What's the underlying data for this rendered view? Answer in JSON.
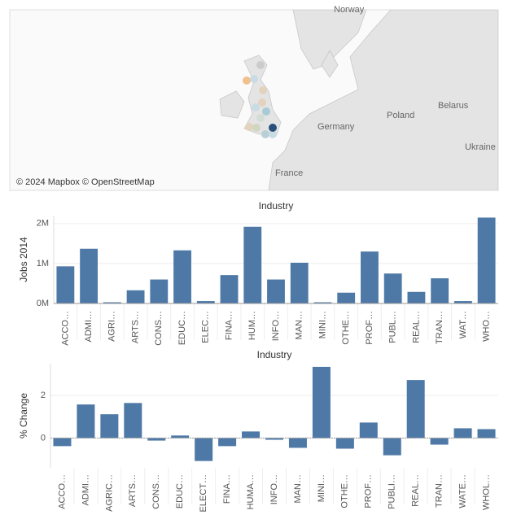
{
  "map": {
    "attribution": "© 2024 Mapbox © OpenStreetMap",
    "labels": [
      "Norway",
      "Poland",
      "Belarus",
      "Germany",
      "France",
      "Ukraine"
    ]
  },
  "chart_data": [
    {
      "type": "bar",
      "title": "Industry",
      "y_label": "Jobs 2014",
      "color": "#4e79a7",
      "categories": [
        "ACCO…",
        "ADMI…",
        "AGRI…",
        "ARTS…",
        "CONS…",
        "EDUC…",
        "ELEC…",
        "FINA…",
        "HUM…",
        "INFO…",
        "MAN…",
        "MINI…",
        "OTHE…",
        "PROF…",
        "PUBL…",
        "REAL…",
        "TRAN…",
        "WAT…",
        "WHO…"
      ],
      "values": [
        930000,
        1370000,
        30000,
        330000,
        600000,
        1330000,
        60000,
        710000,
        1920000,
        600000,
        1020000,
        30000,
        270000,
        1300000,
        750000,
        290000,
        630000,
        60000,
        2150000
      ],
      "ylim": [
        0,
        2200000
      ],
      "yticks": [
        {
          "value": 0,
          "label": "0M"
        },
        {
          "value": 1000000,
          "label": "1M"
        },
        {
          "value": 2000000,
          "label": "2M"
        }
      ],
      "grid": true
    },
    {
      "type": "bar",
      "title": "Industry",
      "y_label": "% Change",
      "color": "#4e79a7",
      "categories": [
        "ACCO…",
        "ADMI…",
        "AGRIC…",
        "ARTS…",
        "CONS…",
        "EDUC…",
        "ELECT…",
        "FINA…",
        "HUMA…",
        "INFO…",
        "MAN…",
        "MINI…",
        "OTHE…",
        "PROF…",
        "PUBLI…",
        "REAL…",
        "TRAN…",
        "WATE…",
        "WHOL…"
      ],
      "values": [
        -0.38,
        1.58,
        1.12,
        1.65,
        -0.12,
        0.12,
        -1.08,
        -0.38,
        0.31,
        -0.08,
        -0.46,
        3.35,
        -0.5,
        0.73,
        -0.81,
        2.73,
        -0.31,
        0.46,
        0.42
      ],
      "ylim": [
        -1.4,
        3.5
      ],
      "yticks": [
        0,
        2
      ],
      "grid": true
    }
  ]
}
